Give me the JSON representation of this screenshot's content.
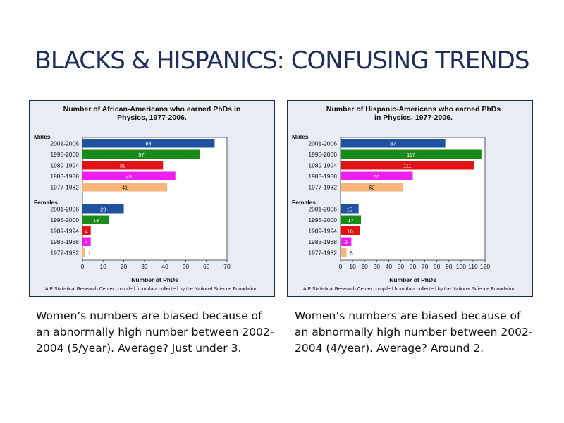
{
  "slide": {
    "title": "BLACKS & HISPANICS: CONFUSING TRENDS",
    "captions": [
      "Women’s numbers are biased because of an abnormally high number between 2002-2004 (5/year). Average? Just under 3.",
      "Women’s numbers are biased because of an abnormally high number between 2002-2004 (4/year). Average? Around 2."
    ]
  },
  "colors": {
    "2001-2006": "#1f52a0",
    "1995-2000": "#1a8a1a",
    "1989-1994": "#e01414",
    "1983-1988": "#ee1fee",
    "1977-1982": "#f7b679"
  },
  "chart_data": [
    {
      "type": "bar",
      "orientation": "horizontal",
      "title": "Number of African-Americans who earned PhDs in Physics, 1977-2006.",
      "xlabel": "Number of PhDs",
      "xlim": [
        0,
        70
      ],
      "xticks": [
        0,
        10,
        20,
        30,
        40,
        50,
        60,
        70
      ],
      "source": "AIP Statistical Research Center compiled from data collected by the National Science Foundation.",
      "groups": [
        {
          "name": "Males",
          "categories": [
            "2001-2006",
            "1995-2000",
            "1989-1994",
            "1983-1988",
            "1977-1982"
          ],
          "values": [
            64,
            57,
            39,
            45,
            41
          ]
        },
        {
          "name": "Females",
          "categories": [
            "2001-2006",
            "1995-2000",
            "1989-1994",
            "1983-1988",
            "1977-1982"
          ],
          "values": [
            20,
            13,
            4,
            4,
            1
          ]
        }
      ]
    },
    {
      "type": "bar",
      "orientation": "horizontal",
      "title": "Number of Hispanic-Americans who earned PhDs in Physics, 1977-2006.",
      "xlabel": "Number of PhDs",
      "xlim": [
        0,
        120
      ],
      "xticks": [
        0,
        10,
        20,
        30,
        40,
        50,
        60,
        70,
        80,
        90,
        100,
        110,
        120
      ],
      "source": "AIP Statistical Research Center compiled from data collected by the National Science Foundation.",
      "groups": [
        {
          "name": "Males",
          "categories": [
            "2001-2006",
            "1995-2000",
            "1989-1994",
            "1983-1988",
            "1977-1982"
          ],
          "values": [
            87,
            117,
            111,
            60,
            52
          ]
        },
        {
          "name": "Females",
          "categories": [
            "2001-2006",
            "1995-2000",
            "1989-1994",
            "1983-1988",
            "1977-1982"
          ],
          "values": [
            15,
            17,
            16,
            9,
            5
          ]
        }
      ]
    }
  ]
}
